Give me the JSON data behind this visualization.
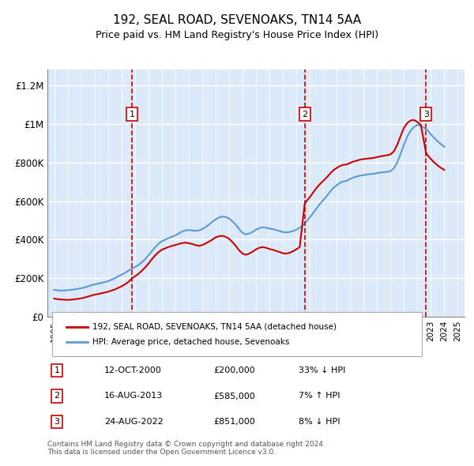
{
  "title": "192, SEAL ROAD, SEVENOAKS, TN14 5AA",
  "subtitle": "Price paid vs. HM Land Registry's House Price Index (HPI)",
  "ylabel_values": [
    "£0",
    "£200K",
    "£400K",
    "£600K",
    "£800K",
    "£1M",
    "£1.2M"
  ],
  "ytick_values": [
    0,
    200000,
    400000,
    600000,
    800000,
    1000000,
    1200000
  ],
  "ylim": [
    0,
    1280000
  ],
  "xlim_start": 1994.5,
  "xlim_end": 2025.5,
  "background_color": "#dce9f8",
  "plot_bg_color": "#dce9f8",
  "grid_color": "#ffffff",
  "legend_line1": "192, SEAL ROAD, SEVENOAKS, TN14 5AA (detached house)",
  "legend_line2": "HPI: Average price, detached house, Sevenoaks",
  "sale_markers": [
    {
      "num": 1,
      "year": 2000.79,
      "price": 200000,
      "date": "12-OCT-2000",
      "amount": "£200,000",
      "pct": "33%",
      "dir": "↓"
    },
    {
      "num": 2,
      "year": 2013.62,
      "price": 585000,
      "date": "16-AUG-2013",
      "amount": "£585,000",
      "pct": "7%",
      "dir": "↑"
    },
    {
      "num": 3,
      "year": 2022.64,
      "price": 851000,
      "date": "24-AUG-2022",
      "amount": "£851,000",
      "pct": "8%",
      "dir": "↓"
    }
  ],
  "hpi_data_x": [
    1995.0,
    1995.25,
    1995.5,
    1995.75,
    1996.0,
    1996.25,
    1996.5,
    1996.75,
    1997.0,
    1997.25,
    1997.5,
    1997.75,
    1998.0,
    1998.25,
    1998.5,
    1998.75,
    1999.0,
    1999.25,
    1999.5,
    1999.75,
    2000.0,
    2000.25,
    2000.5,
    2000.75,
    2001.0,
    2001.25,
    2001.5,
    2001.75,
    2002.0,
    2002.25,
    2002.5,
    2002.75,
    2003.0,
    2003.25,
    2003.5,
    2003.75,
    2004.0,
    2004.25,
    2004.5,
    2004.75,
    2005.0,
    2005.25,
    2005.5,
    2005.75,
    2006.0,
    2006.25,
    2006.5,
    2006.75,
    2007.0,
    2007.25,
    2007.5,
    2007.75,
    2008.0,
    2008.25,
    2008.5,
    2008.75,
    2009.0,
    2009.25,
    2009.5,
    2009.75,
    2010.0,
    2010.25,
    2010.5,
    2010.75,
    2011.0,
    2011.25,
    2011.5,
    2011.75,
    2012.0,
    2012.25,
    2012.5,
    2012.75,
    2013.0,
    2013.25,
    2013.5,
    2013.75,
    2014.0,
    2014.25,
    2014.5,
    2014.75,
    2015.0,
    2015.25,
    2015.5,
    2015.75,
    2016.0,
    2016.25,
    2016.5,
    2016.75,
    2017.0,
    2017.25,
    2017.5,
    2017.75,
    2018.0,
    2018.25,
    2018.5,
    2018.75,
    2019.0,
    2019.25,
    2019.5,
    2019.75,
    2020.0,
    2020.25,
    2020.5,
    2020.75,
    2021.0,
    2021.25,
    2021.5,
    2021.75,
    2022.0,
    2022.25,
    2022.5,
    2022.75,
    2023.0,
    2023.25,
    2023.5,
    2023.75,
    2024.0
  ],
  "hpi_data_y": [
    140000,
    138000,
    136000,
    137000,
    138000,
    140000,
    142000,
    145000,
    148000,
    152000,
    158000,
    164000,
    168000,
    172000,
    176000,
    180000,
    185000,
    192000,
    200000,
    210000,
    218000,
    228000,
    238000,
    248000,
    258000,
    268000,
    282000,
    298000,
    318000,
    340000,
    360000,
    378000,
    392000,
    400000,
    408000,
    415000,
    422000,
    432000,
    442000,
    448000,
    450000,
    448000,
    446000,
    448000,
    455000,
    465000,
    478000,
    492000,
    505000,
    515000,
    520000,
    518000,
    510000,
    495000,
    478000,
    455000,
    435000,
    428000,
    432000,
    440000,
    452000,
    460000,
    465000,
    462000,
    458000,
    455000,
    450000,
    445000,
    440000,
    438000,
    440000,
    445000,
    452000,
    462000,
    475000,
    495000,
    515000,
    538000,
    562000,
    585000,
    605000,
    625000,
    648000,
    668000,
    682000,
    695000,
    702000,
    705000,
    715000,
    722000,
    728000,
    732000,
    735000,
    738000,
    740000,
    742000,
    745000,
    748000,
    750000,
    752000,
    755000,
    770000,
    800000,
    845000,
    892000,
    935000,
    965000,
    985000,
    995000,
    990000,
    980000,
    968000,
    945000,
    928000,
    910000,
    895000,
    882000
  ],
  "price_data_x": [
    1995.0,
    1995.25,
    1995.5,
    1995.75,
    1996.0,
    1996.25,
    1996.5,
    1996.75,
    1997.0,
    1997.25,
    1997.5,
    1997.75,
    1998.0,
    1998.25,
    1998.5,
    1998.75,
    1999.0,
    1999.25,
    1999.5,
    1999.75,
    2000.0,
    2000.25,
    2000.5,
    2000.79,
    2001.0,
    2001.25,
    2001.5,
    2001.75,
    2002.0,
    2002.25,
    2002.5,
    2002.75,
    2003.0,
    2003.25,
    2003.5,
    2003.75,
    2004.0,
    2004.25,
    2004.5,
    2004.75,
    2005.0,
    2005.25,
    2005.5,
    2005.75,
    2006.0,
    2006.25,
    2006.5,
    2006.75,
    2007.0,
    2007.25,
    2007.5,
    2007.75,
    2008.0,
    2008.25,
    2008.5,
    2008.75,
    2009.0,
    2009.25,
    2009.5,
    2009.75,
    2010.0,
    2010.25,
    2010.5,
    2010.75,
    2011.0,
    2011.25,
    2011.5,
    2011.75,
    2012.0,
    2012.25,
    2012.5,
    2012.75,
    2013.0,
    2013.25,
    2013.62,
    2013.75,
    2014.0,
    2014.25,
    2014.5,
    2014.75,
    2015.0,
    2015.25,
    2015.5,
    2015.75,
    2016.0,
    2016.25,
    2016.5,
    2016.75,
    2017.0,
    2017.25,
    2017.5,
    2017.75,
    2018.0,
    2018.25,
    2018.5,
    2018.75,
    2019.0,
    2019.25,
    2019.5,
    2019.75,
    2020.0,
    2020.25,
    2020.5,
    2020.75,
    2021.0,
    2021.25,
    2021.5,
    2021.75,
    2022.0,
    2022.25,
    2022.64,
    2022.75,
    2023.0,
    2023.25,
    2023.5,
    2023.75,
    2024.0
  ],
  "price_data_y": [
    95000,
    92000,
    90000,
    89000,
    88000,
    89000,
    91000,
    93000,
    96000,
    100000,
    105000,
    110000,
    115000,
    118000,
    122000,
    126000,
    130000,
    136000,
    142000,
    150000,
    158000,
    168000,
    180000,
    200000,
    210000,
    222000,
    238000,
    255000,
    275000,
    298000,
    318000,
    335000,
    348000,
    355000,
    362000,
    368000,
    372000,
    378000,
    382000,
    385000,
    382000,
    378000,
    372000,
    368000,
    372000,
    380000,
    390000,
    400000,
    412000,
    418000,
    420000,
    415000,
    405000,
    388000,
    368000,
    345000,
    328000,
    322000,
    328000,
    338000,
    350000,
    358000,
    362000,
    358000,
    352000,
    348000,
    342000,
    336000,
    330000,
    328000,
    332000,
    340000,
    350000,
    362000,
    585000,
    600000,
    620000,
    645000,
    668000,
    688000,
    705000,
    722000,
    742000,
    760000,
    772000,
    782000,
    788000,
    790000,
    798000,
    805000,
    810000,
    815000,
    818000,
    820000,
    822000,
    824000,
    828000,
    832000,
    835000,
    838000,
    842000,
    858000,
    892000,
    938000,
    980000,
    1005000,
    1018000,
    1020000,
    1010000,
    995000,
    851000,
    838000,
    818000,
    800000,
    785000,
    772000,
    762000
  ],
  "footer_line1": "Contains HM Land Registry data © Crown copyright and database right 2024.",
  "footer_line2": "This data is licensed under the Open Government Licence v3.0.",
  "red_color": "#cc0000",
  "blue_color": "#5b9bd5",
  "dashed_red": "#cc0000"
}
